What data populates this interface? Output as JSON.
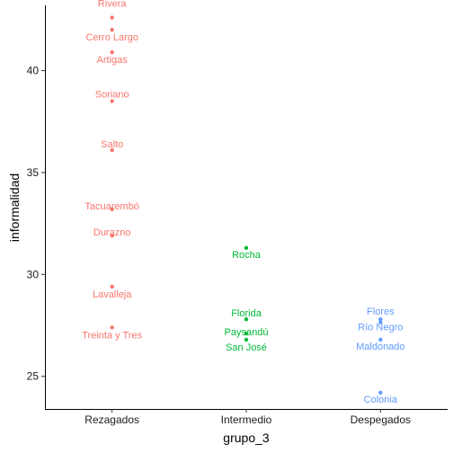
{
  "chart_data": {
    "type": "scatter",
    "xlabel": "grupo_3",
    "ylabel": "informalidad",
    "categories": [
      "Rezagados",
      "Intermedio",
      "Despegados"
    ],
    "ylim": [
      23.4,
      43.2
    ],
    "yticks": [
      25,
      30,
      35,
      40
    ],
    "grid": false,
    "legend": "none",
    "series": [
      {
        "category": "Rezagados",
        "color": "#F8766D",
        "points": [
          {
            "label": "Rivera",
            "y": 42.6
          },
          {
            "label": "Cerro Largo",
            "y": 42.0
          },
          {
            "label": "Artigas",
            "y": 40.9
          },
          {
            "label": "Soriano",
            "y": 38.5
          },
          {
            "label": "Salto",
            "y": 36.1
          },
          {
            "label": "Tacuarembó",
            "y": 33.2
          },
          {
            "label": "Durazno",
            "y": 31.9
          },
          {
            "label": "Lavalleja",
            "y": 29.4
          },
          {
            "label": "Treinta y Tres",
            "y": 27.4
          }
        ]
      },
      {
        "category": "Intermedio",
        "color": "#00BA38",
        "points": [
          {
            "label": "Rocha",
            "y": 31.3
          },
          {
            "label": "Florida",
            "y": 27.8
          },
          {
            "label": "Paysandú",
            "y": 27.1
          },
          {
            "label": "San José",
            "y": 26.8
          }
        ]
      },
      {
        "category": "Despegados",
        "color": "#619CFF",
        "points": [
          {
            "label": "Flores",
            "y": 27.8
          },
          {
            "label": "Río Negro",
            "y": 27.65
          },
          {
            "label": "Maldonado",
            "y": 26.8
          },
          {
            "label": "Colonia",
            "y": 24.2
          }
        ]
      }
    ]
  }
}
